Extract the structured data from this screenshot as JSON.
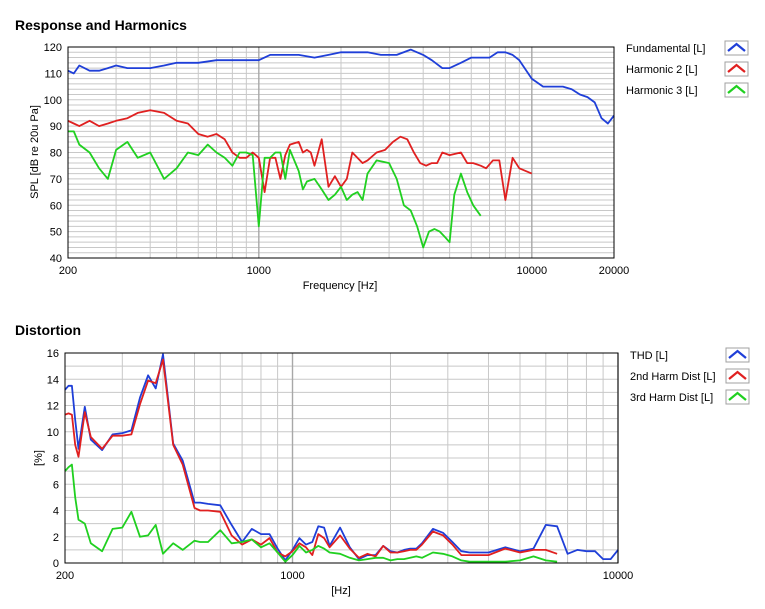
{
  "chart_data": [
    {
      "type": "line",
      "title": "Response and Harmonics",
      "xlabel": "Frequency [Hz]",
      "ylabel": "SPL [dB re 20u Pa]",
      "xscale": "log",
      "xlim": [
        200,
        20000
      ],
      "ylim": [
        40,
        120
      ],
      "xticks": [
        200,
        1000,
        10000,
        20000
      ],
      "xtick_labels": [
        "200",
        "1000",
        "10000",
        "20000"
      ],
      "yticks": [
        40,
        50,
        60,
        70,
        80,
        90,
        100,
        110,
        120
      ],
      "ytick_labels": [
        "40",
        "50",
        "60",
        "70",
        "80",
        "90",
        "100",
        "110",
        "120"
      ],
      "ygrid_step": 2,
      "grid": true,
      "legend_position": "right",
      "series": [
        {
          "name": "Fundamental [L]",
          "color": "#1f3fd8",
          "x": [
            200,
            210,
            220,
            240,
            260,
            280,
            300,
            330,
            360,
            400,
            450,
            500,
            550,
            600,
            700,
            800,
            900,
            1000,
            1100,
            1200,
            1400,
            1600,
            1800,
            2000,
            2200,
            2500,
            2800,
            3200,
            3600,
            4000,
            4300,
            4700,
            5000,
            5500,
            6000,
            6500,
            7000,
            7500,
            8000,
            8500,
            9000,
            10000,
            11000,
            12000,
            13000,
            14000,
            15000,
            16000,
            17000,
            18000,
            19000,
            20000
          ],
          "y": [
            111,
            110,
            113,
            111,
            111,
            112,
            113,
            112,
            112,
            112,
            113,
            114,
            114,
            114,
            115,
            115,
            115,
            115,
            117,
            117,
            117,
            116,
            117,
            118,
            118,
            118,
            117,
            117,
            119,
            117,
            115,
            112,
            112,
            114,
            116,
            116,
            116,
            118,
            118,
            117,
            115,
            108,
            105,
            105,
            105,
            104,
            102,
            101,
            99,
            93,
            91,
            94
          ]
        },
        {
          "name": "Harmonic 2 [L]",
          "color": "#e02020",
          "x": [
            200,
            210,
            220,
            240,
            260,
            280,
            300,
            330,
            360,
            400,
            450,
            500,
            550,
            600,
            650,
            700,
            750,
            800,
            850,
            900,
            950,
            1000,
            1050,
            1100,
            1150,
            1200,
            1250,
            1300,
            1400,
            1450,
            1500,
            1550,
            1600,
            1700,
            1800,
            1900,
            2000,
            2100,
            2200,
            2400,
            2500,
            2700,
            2900,
            3100,
            3300,
            3500,
            3700,
            3900,
            4100,
            4300,
            4500,
            4700,
            5000,
            5500,
            5800,
            6100,
            6500,
            6800,
            7200,
            7600,
            8000,
            8500,
            9000,
            10000
          ],
          "y": [
            92,
            91,
            90,
            92,
            90,
            91,
            92,
            93,
            95,
            96,
            95,
            92,
            91,
            87,
            86,
            87,
            85,
            80,
            78,
            78,
            80,
            78,
            65,
            78,
            78,
            70,
            79,
            83,
            84,
            80,
            81,
            80,
            75,
            85,
            67,
            71,
            67,
            70,
            80,
            76,
            77,
            80,
            81,
            84,
            86,
            85,
            80,
            76,
            75,
            76,
            76,
            80,
            79,
            80,
            76,
            76,
            75,
            74,
            77,
            77,
            62,
            78,
            74,
            72
          ]
        },
        {
          "name": "Harmonic 3 [L]",
          "color": "#20d020",
          "x": [
            200,
            210,
            220,
            240,
            260,
            280,
            300,
            330,
            360,
            400,
            450,
            500,
            550,
            600,
            650,
            700,
            750,
            800,
            850,
            900,
            950,
            1000,
            1050,
            1100,
            1150,
            1200,
            1250,
            1300,
            1400,
            1450,
            1500,
            1600,
            1700,
            1800,
            1900,
            2000,
            2100,
            2200,
            2300,
            2400,
            2500,
            2700,
            3000,
            3200,
            3400,
            3600,
            3800,
            4000,
            4200,
            4400,
            4600,
            4800,
            5000,
            5200,
            5500,
            5800,
            6100,
            6500
          ],
          "y": [
            88,
            88,
            83,
            80,
            74,
            70,
            81,
            84,
            78,
            80,
            70,
            74,
            80,
            79,
            83,
            80,
            78,
            75,
            80,
            80,
            79,
            52,
            78,
            78,
            80,
            80,
            70,
            81,
            73,
            66,
            69,
            70,
            66,
            62,
            64,
            67,
            62,
            64,
            65,
            62,
            72,
            77,
            76,
            70,
            60,
            58,
            52,
            44,
            50,
            51,
            50,
            48,
            46,
            64,
            72,
            65,
            60,
            56
          ]
        }
      ]
    },
    {
      "type": "line",
      "title": "Distortion",
      "xlabel": "[Hz]",
      "ylabel": "[%]",
      "xscale": "log",
      "xlim": [
        200,
        10000
      ],
      "ylim": [
        0,
        16
      ],
      "xticks": [
        200,
        1000,
        10000
      ],
      "xtick_labels": [
        "200",
        "1000",
        "10000"
      ],
      "yticks": [
        0,
        2,
        4,
        6,
        8,
        10,
        12,
        14,
        16
      ],
      "ytick_labels": [
        "0",
        "2",
        "4",
        "6",
        "8",
        "10",
        "12",
        "14",
        "16"
      ],
      "ygrid_step": 1,
      "grid": true,
      "legend_position": "right",
      "series": [
        {
          "name": "THD [L]",
          "color": "#1f3fd8",
          "x": [
            200,
            205,
            210,
            215,
            220,
            230,
            240,
            260,
            280,
            300,
            320,
            340,
            360,
            380,
            400,
            430,
            460,
            500,
            520,
            550,
            600,
            650,
            700,
            750,
            800,
            850,
            900,
            950,
            1000,
            1050,
            1100,
            1150,
            1200,
            1250,
            1300,
            1400,
            1500,
            1600,
            1700,
            1800,
            1900,
            2000,
            2100,
            2200,
            2300,
            2400,
            2500,
            2700,
            2900,
            3100,
            3300,
            3500,
            4000,
            4500,
            5000,
            5500,
            6000,
            6500,
            7000,
            7500,
            8000,
            8500,
            9000,
            9500,
            10000
          ],
          "y": [
            13.2,
            13.5,
            13.5,
            10.9,
            8.7,
            11.9,
            9.4,
            8.6,
            9.8,
            9.9,
            10.1,
            12.6,
            14.3,
            13.3,
            15.9,
            9.1,
            7.8,
            4.6,
            4.6,
            4.5,
            4.4,
            2.9,
            1.6,
            2.6,
            2.2,
            2.2,
            1.1,
            0.2,
            1.0,
            1.9,
            1.4,
            1.6,
            2.8,
            2.7,
            1.3,
            2.7,
            1.2,
            0.3,
            0.6,
            0.6,
            1.3,
            0.9,
            0.8,
            1.0,
            1.1,
            1.1,
            1.5,
            2.6,
            2.3,
            1.6,
            0.9,
            0.8,
            0.8,
            1.2,
            0.9,
            1.1,
            2.9,
            2.8,
            0.7,
            1.0,
            0.9,
            0.9,
            0.3,
            0.3,
            1.0
          ]
        },
        {
          "name": "2nd Harm Dist [L]",
          "color": "#e02020",
          "x": [
            200,
            205,
            210,
            215,
            220,
            230,
            240,
            260,
            280,
            300,
            320,
            340,
            360,
            380,
            400,
            430,
            460,
            500,
            520,
            550,
            600,
            650,
            700,
            750,
            800,
            850,
            900,
            950,
            1000,
            1050,
            1100,
            1150,
            1200,
            1250,
            1300,
            1400,
            1500,
            1600,
            1700,
            1800,
            1900,
            2000,
            2100,
            2200,
            2300,
            2400,
            2500,
            2700,
            2900,
            3100,
            3300,
            3500,
            4000,
            4500,
            5000,
            5500,
            6000,
            6500
          ],
          "y": [
            11.3,
            11.4,
            11.3,
            9.0,
            8.1,
            11.5,
            9.6,
            8.7,
            9.7,
            9.7,
            9.8,
            12.1,
            13.9,
            13.7,
            15.5,
            9.0,
            7.5,
            4.2,
            4.0,
            4.0,
            3.9,
            2.1,
            1.4,
            1.8,
            1.4,
            1.9,
            0.8,
            0.5,
            0.9,
            1.5,
            1.2,
            0.6,
            2.2,
            1.9,
            1.2,
            2.1,
            1.1,
            0.4,
            0.7,
            0.5,
            1.3,
            0.8,
            0.8,
            0.9,
            1.0,
            1.0,
            1.4,
            2.4,
            2.1,
            1.4,
            0.6,
            0.6,
            0.6,
            1.1,
            0.8,
            1.0,
            1.0,
            0.7
          ]
        },
        {
          "name": "3rd Harm Dist [L]",
          "color": "#20d020",
          "x": [
            200,
            205,
            210,
            215,
            220,
            230,
            240,
            260,
            280,
            300,
            320,
            340,
            360,
            380,
            400,
            430,
            460,
            500,
            520,
            550,
            600,
            650,
            700,
            750,
            800,
            850,
            900,
            950,
            1000,
            1050,
            1100,
            1150,
            1200,
            1250,
            1300,
            1400,
            1500,
            1600,
            1700,
            1800,
            1900,
            2000,
            2100,
            2200,
            2300,
            2400,
            2500,
            2700,
            2900,
            3100,
            3300,
            3500,
            4000,
            4500,
            5000,
            5500,
            6000,
            6500
          ],
          "y": [
            7.0,
            7.3,
            7.5,
            5.0,
            3.3,
            3.0,
            1.5,
            0.9,
            2.6,
            2.7,
            3.9,
            2.0,
            2.1,
            2.9,
            0.7,
            1.5,
            1.0,
            1.7,
            1.6,
            1.6,
            2.5,
            1.5,
            1.6,
            1.8,
            1.2,
            1.5,
            0.8,
            0.1,
            0.6,
            1.3,
            0.8,
            1.0,
            1.3,
            1.1,
            0.8,
            0.7,
            0.4,
            0.2,
            0.3,
            0.4,
            0.4,
            0.2,
            0.3,
            0.3,
            0.4,
            0.5,
            0.4,
            0.8,
            0.7,
            0.5,
            0.2,
            0.1,
            0.1,
            0.1,
            0.2,
            0.5,
            0.2,
            0.1
          ]
        }
      ]
    }
  ]
}
